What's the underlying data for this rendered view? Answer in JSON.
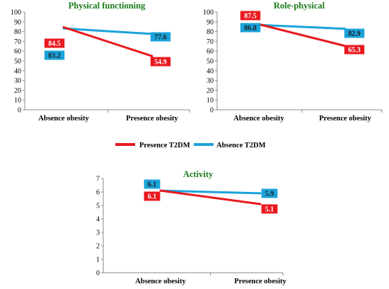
{
  "colors": {
    "presence_t2dm": "#e8191f",
    "absence_t2dm": "#1aa3da",
    "title": "#1a7a1a"
  },
  "legend": {
    "items": [
      {
        "label": "Presence T2DM",
        "color": "#e8191f"
      },
      {
        "label": "Absence T2DM",
        "color": "#1aa3da"
      }
    ],
    "placement": "middle"
  },
  "chart_data": [
    {
      "type": "line",
      "title": "Physical functioning",
      "categories": [
        "Absence obesity",
        "Presence obesity"
      ],
      "ylim": [
        0,
        100
      ],
      "yticks": [
        0,
        10,
        20,
        30,
        40,
        50,
        60,
        70,
        80,
        90,
        100
      ],
      "series": [
        {
          "name": "Presence T2DM",
          "values": [
            84.5,
            54.9
          ]
        },
        {
          "name": "Absence T2DM",
          "values": [
            83.2,
            77.6
          ]
        }
      ]
    },
    {
      "type": "line",
      "title": "Role-physical",
      "categories": [
        "Absence obesity",
        "Presence obesity"
      ],
      "ylim": [
        0,
        100
      ],
      "yticks": [
        0,
        10,
        20,
        30,
        40,
        50,
        60,
        70,
        80,
        90,
        100
      ],
      "series": [
        {
          "name": "Presence T2DM",
          "values": [
            87.5,
            65.3
          ]
        },
        {
          "name": "Absence T2DM",
          "values": [
            86.8,
            82.9
          ]
        }
      ]
    },
    {
      "type": "line",
      "title": "Activity",
      "categories": [
        "Absence obesity",
        "Presence obesity"
      ],
      "ylim": [
        0,
        7
      ],
      "yticks": [
        0,
        1,
        2,
        3,
        4,
        5,
        6,
        7
      ],
      "series": [
        {
          "name": "Presence T2DM",
          "values": [
            6.1,
            5.1
          ]
        },
        {
          "name": "Absence T2DM",
          "values": [
            6.1,
            5.9
          ]
        }
      ]
    }
  ]
}
